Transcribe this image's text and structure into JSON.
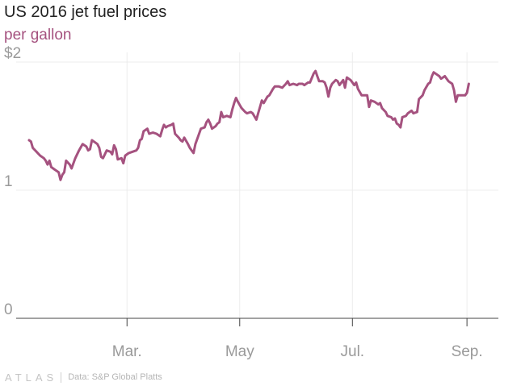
{
  "title": "US 2016 jet fuel prices",
  "subtitle": "per gallon",
  "footer": {
    "logo": "ATLAS",
    "source": "Data: S&P Global Platts"
  },
  "colors": {
    "line": "#a5527f",
    "subtitle": "#a5527f",
    "grid": "#ececec",
    "axis": "#444444",
    "tick_text": "#9a9a9a"
  },
  "chart_data": {
    "type": "line",
    "title": "US 2016 jet fuel prices",
    "subtitle": "per gallon",
    "xlabel": "",
    "ylabel": "",
    "x_unit": "day of year 2016",
    "xlim": [
      1,
      262
    ],
    "ylim": [
      0,
      2
    ],
    "grid": true,
    "legend": "none",
    "y_ticks": [
      {
        "value": 0,
        "label": "0"
      },
      {
        "value": 1,
        "label": "1"
      },
      {
        "value": 2,
        "label": "$2"
      }
    ],
    "x_ticks": [
      {
        "value": 61,
        "label": "Mar."
      },
      {
        "value": 122,
        "label": "May"
      },
      {
        "value": 183,
        "label": "Jul."
      },
      {
        "value": 245,
        "label": "Sep."
      }
    ],
    "series": [
      {
        "points": [
          [
            8,
            1.39
          ],
          [
            9,
            1.38
          ],
          [
            10,
            1.33
          ],
          [
            12,
            1.3
          ],
          [
            14,
            1.27
          ],
          [
            16,
            1.25
          ],
          [
            17,
            1.23
          ],
          [
            18,
            1.2
          ],
          [
            19,
            1.23
          ],
          [
            20,
            1.18
          ],
          [
            22,
            1.16
          ],
          [
            24,
            1.14
          ],
          [
            25,
            1.08
          ],
          [
            26,
            1.12
          ],
          [
            27,
            1.14
          ],
          [
            28,
            1.23
          ],
          [
            30,
            1.2
          ],
          [
            31,
            1.17
          ],
          [
            33,
            1.25
          ],
          [
            35,
            1.31
          ],
          [
            37,
            1.36
          ],
          [
            39,
            1.34
          ],
          [
            40,
            1.31
          ],
          [
            41,
            1.32
          ],
          [
            42,
            1.39
          ],
          [
            44,
            1.37
          ],
          [
            45,
            1.36
          ],
          [
            46,
            1.33
          ],
          [
            47,
            1.26
          ],
          [
            48,
            1.25
          ],
          [
            50,
            1.31
          ],
          [
            52,
            1.3
          ],
          [
            53,
            1.28
          ],
          [
            54,
            1.35
          ],
          [
            55,
            1.32
          ],
          [
            56,
            1.24
          ],
          [
            58,
            1.25
          ],
          [
            59,
            1.21
          ],
          [
            60,
            1.27
          ],
          [
            61,
            1.28
          ],
          [
            62,
            1.29
          ],
          [
            64,
            1.3
          ],
          [
            66,
            1.31
          ],
          [
            67,
            1.33
          ],
          [
            68,
            1.39
          ],
          [
            69,
            1.4
          ],
          [
            70,
            1.46
          ],
          [
            72,
            1.48
          ],
          [
            73,
            1.44
          ],
          [
            75,
            1.45
          ],
          [
            77,
            1.44
          ],
          [
            79,
            1.42
          ],
          [
            80,
            1.47
          ],
          [
            81,
            1.51
          ],
          [
            82,
            1.49
          ],
          [
            83,
            1.5
          ],
          [
            85,
            1.51
          ],
          [
            86,
            1.52
          ],
          [
            87,
            1.44
          ],
          [
            89,
            1.41
          ],
          [
            90,
            1.39
          ],
          [
            91,
            1.38
          ],
          [
            92,
            1.41
          ],
          [
            94,
            1.36
          ],
          [
            95,
            1.33
          ],
          [
            96,
            1.31
          ],
          [
            97,
            1.29
          ],
          [
            98,
            1.36
          ],
          [
            99,
            1.4
          ],
          [
            101,
            1.48
          ],
          [
            103,
            1.49
          ],
          [
            104,
            1.53
          ],
          [
            105,
            1.55
          ],
          [
            106,
            1.52
          ],
          [
            107,
            1.48
          ],
          [
            109,
            1.5
          ],
          [
            110,
            1.52
          ],
          [
            111,
            1.53
          ],
          [
            112,
            1.61
          ],
          [
            113,
            1.57
          ],
          [
            115,
            1.58
          ],
          [
            117,
            1.57
          ],
          [
            118,
            1.63
          ],
          [
            119,
            1.68
          ],
          [
            120,
            1.72
          ],
          [
            121,
            1.69
          ],
          [
            123,
            1.64
          ],
          [
            125,
            1.61
          ],
          [
            126,
            1.6
          ],
          [
            128,
            1.61
          ],
          [
            129,
            1.6
          ],
          [
            131,
            1.55
          ],
          [
            132,
            1.6
          ],
          [
            134,
            1.7
          ],
          [
            135,
            1.68
          ],
          [
            137,
            1.73
          ],
          [
            138,
            1.74
          ],
          [
            140,
            1.79
          ],
          [
            141,
            1.81
          ],
          [
            143,
            1.81
          ],
          [
            145,
            1.8
          ],
          [
            147,
            1.83
          ],
          [
            148,
            1.85
          ],
          [
            149,
            1.82
          ],
          [
            151,
            1.83
          ],
          [
            153,
            1.82
          ],
          [
            154,
            1.83
          ],
          [
            156,
            1.83
          ],
          [
            157,
            1.82
          ],
          [
            159,
            1.84
          ],
          [
            160,
            1.84
          ],
          [
            162,
            1.91
          ],
          [
            163,
            1.93
          ],
          [
            164,
            1.89
          ],
          [
            165,
            1.85
          ],
          [
            167,
            1.85
          ],
          [
            168,
            1.84
          ],
          [
            169,
            1.8
          ],
          [
            170,
            1.73
          ],
          [
            171,
            1.8
          ],
          [
            172,
            1.83
          ],
          [
            174,
            1.86
          ],
          [
            175,
            1.85
          ],
          [
            176,
            1.82
          ],
          [
            178,
            1.86
          ],
          [
            179,
            1.8
          ],
          [
            180,
            1.88
          ],
          [
            182,
            1.86
          ],
          [
            183,
            1.84
          ],
          [
            184,
            1.82
          ],
          [
            185,
            1.84
          ],
          [
            186,
            1.79
          ],
          [
            188,
            1.74
          ],
          [
            190,
            1.74
          ],
          [
            191,
            1.74
          ],
          [
            192,
            1.65
          ],
          [
            193,
            1.7
          ],
          [
            195,
            1.69
          ],
          [
            197,
            1.67
          ],
          [
            198,
            1.68
          ],
          [
            199,
            1.64
          ],
          [
            201,
            1.61
          ],
          [
            202,
            1.58
          ],
          [
            204,
            1.57
          ],
          [
            205,
            1.55
          ],
          [
            206,
            1.56
          ],
          [
            207,
            1.52
          ],
          [
            208,
            1.51
          ],
          [
            209,
            1.49
          ],
          [
            210,
            1.57
          ],
          [
            212,
            1.58
          ],
          [
            213,
            1.6
          ],
          [
            214,
            1.61
          ],
          [
            215,
            1.62
          ],
          [
            216,
            1.6
          ],
          [
            218,
            1.61
          ],
          [
            219,
            1.71
          ],
          [
            221,
            1.74
          ],
          [
            222,
            1.78
          ],
          [
            224,
            1.83
          ],
          [
            225,
            1.84
          ],
          [
            226,
            1.89
          ],
          [
            227,
            1.92
          ],
          [
            228,
            1.91
          ],
          [
            230,
            1.89
          ],
          [
            231,
            1.87
          ],
          [
            233,
            1.89
          ],
          [
            234,
            1.87
          ],
          [
            235,
            1.85
          ],
          [
            237,
            1.83
          ],
          [
            238,
            1.78
          ],
          [
            239,
            1.69
          ],
          [
            240,
            1.74
          ],
          [
            242,
            1.74
          ],
          [
            244,
            1.74
          ],
          [
            245,
            1.76
          ],
          [
            246,
            1.83
          ]
        ]
      }
    ]
  }
}
